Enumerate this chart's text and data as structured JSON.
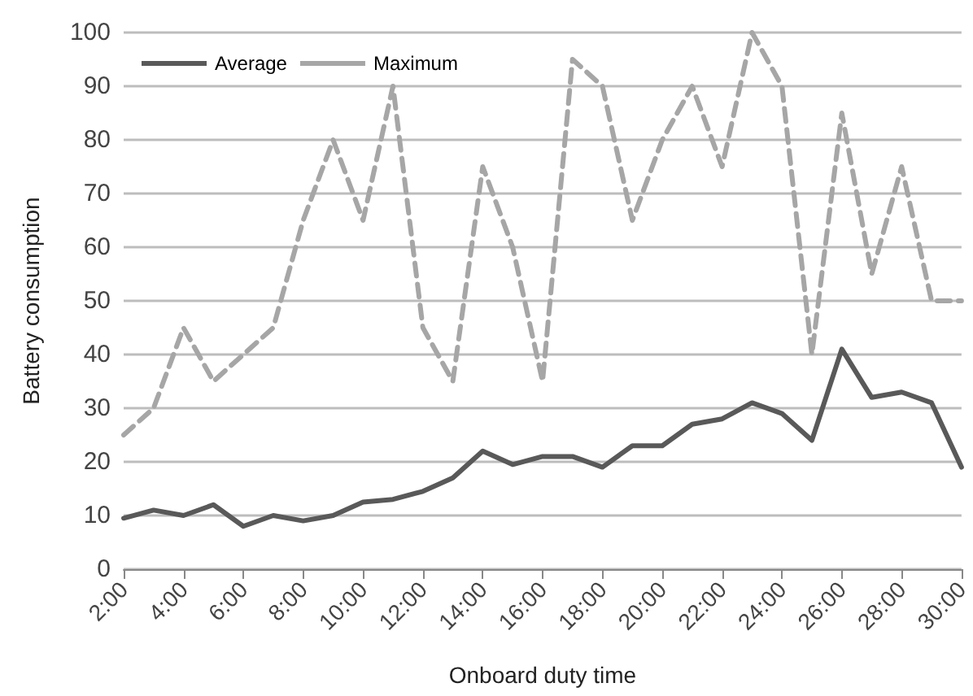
{
  "chart_data": {
    "type": "line",
    "xlabel": "Onboard duty time",
    "ylabel": "Battery consumption",
    "categories": [
      "2:00",
      null,
      "4:00",
      null,
      "6:00",
      null,
      "8:00",
      null,
      "10:00",
      null,
      "12:00",
      null,
      "14:00",
      null,
      "16:00",
      null,
      "18:00",
      null,
      "20:00",
      null,
      "22:00",
      null,
      "24:00",
      null,
      "26:00",
      null,
      "28:00",
      null,
      "30:00"
    ],
    "series": [
      {
        "name": "Average",
        "color": "#595959",
        "line_style": "solid",
        "values": [
          9.5,
          11,
          10,
          12,
          8,
          10,
          9,
          10,
          12.5,
          13,
          14.5,
          17,
          22,
          19.5,
          21,
          21,
          19,
          23,
          23,
          27,
          28,
          31,
          29,
          24,
          41,
          32,
          33,
          31,
          19
        ]
      },
      {
        "name": "Maximum",
        "color": "#a6a6a6",
        "line_style": "dashed",
        "values": [
          25,
          30,
          45,
          35,
          40,
          45,
          65,
          80,
          65,
          90,
          45,
          35,
          75,
          60,
          35,
          95,
          90,
          65,
          80,
          90,
          75,
          100,
          90,
          40,
          85,
          55,
          75,
          50,
          50
        ]
      }
    ],
    "ylim": [
      0,
      100
    ],
    "yticks": [
      0,
      10,
      20,
      30,
      40,
      50,
      60,
      70,
      80,
      90,
      100
    ],
    "grid": "y",
    "legend": "top left",
    "marker": "none"
  }
}
